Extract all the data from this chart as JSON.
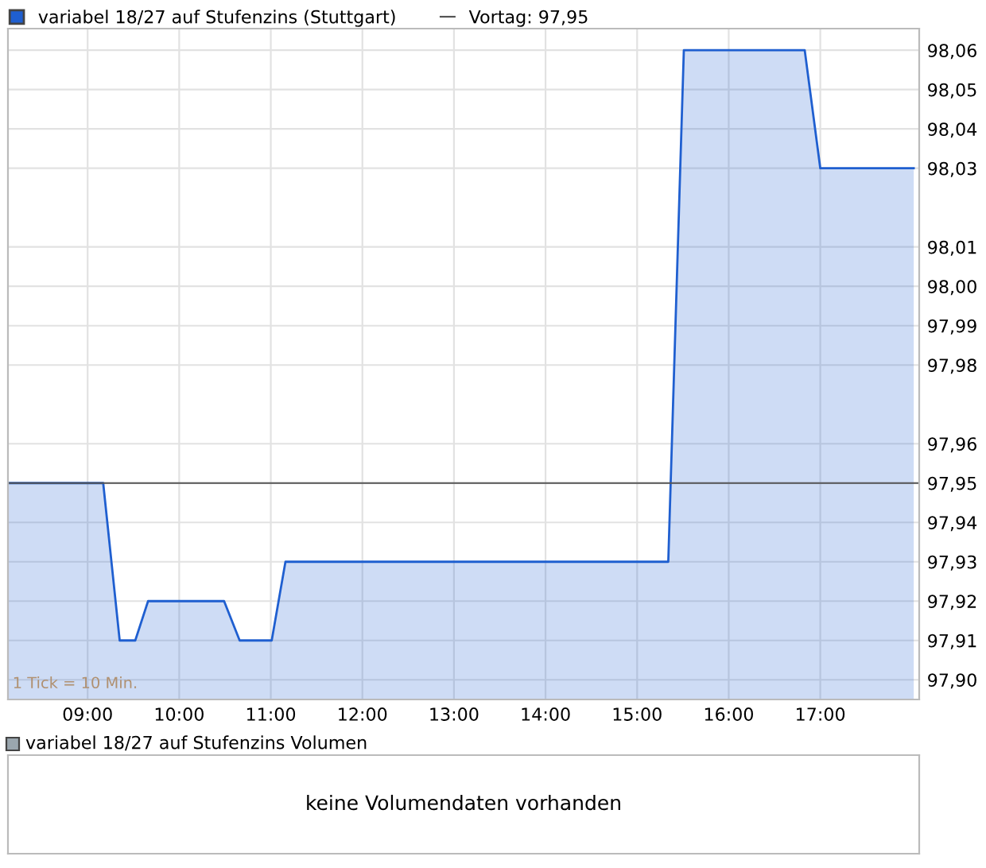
{
  "chart_data": [
    {
      "type": "area",
      "legend": "top left",
      "series": [
        {
          "name": "variabel 18/27 auf Stufenzins (Stuttgart)",
          "color": "#1f5fd0",
          "x": [
            8.13,
            9.17,
            9.35,
            9.52,
            9.66,
            10.49,
            10.66,
            11.01,
            11.16,
            15.34,
            15.51,
            16.83,
            17.0,
            18.02
          ],
          "values": [
            97.95,
            97.95,
            97.91,
            97.91,
            97.92,
            97.92,
            97.91,
            97.91,
            97.93,
            97.93,
            98.06,
            98.06,
            98.03,
            98.03
          ]
        }
      ],
      "ref_lines": [
        {
          "axis": "y",
          "value": 97.95,
          "label": "Vortag: 97,95",
          "color": "#555555"
        }
      ],
      "xlim": [
        8.13,
        18.08
      ],
      "xticks": [
        {
          "value": 9,
          "label": "09:00"
        },
        {
          "value": 10,
          "label": "10:00"
        },
        {
          "value": 11,
          "label": "11:00"
        },
        {
          "value": 12,
          "label": "12:00"
        },
        {
          "value": 13,
          "label": "13:00"
        },
        {
          "value": 14,
          "label": "14:00"
        },
        {
          "value": 15,
          "label": "15:00"
        },
        {
          "value": 16,
          "label": "16:00"
        },
        {
          "value": 17,
          "label": "17:00"
        }
      ],
      "ylim": [
        97.895,
        98.0655
      ],
      "yticks": [
        {
          "value": 97.9,
          "label": "97,90"
        },
        {
          "value": 97.91,
          "label": "97,91"
        },
        {
          "value": 97.92,
          "label": "97,92"
        },
        {
          "value": 97.93,
          "label": "97,93"
        },
        {
          "value": 97.94,
          "label": "97,94"
        },
        {
          "value": 97.95,
          "label": "97,95"
        },
        {
          "value": 97.96,
          "label": "97,96"
        },
        {
          "value": 97.98,
          "label": "97,98"
        },
        {
          "value": 97.99,
          "label": "97,99"
        },
        {
          "value": 98.0,
          "label": "98,00"
        },
        {
          "value": 98.01,
          "label": "98,01"
        },
        {
          "value": 98.03,
          "label": "98,03"
        },
        {
          "value": 98.04,
          "label": "98,04"
        },
        {
          "value": 98.05,
          "label": "98,05"
        },
        {
          "value": 98.06,
          "label": "98,06"
        }
      ],
      "grid": true,
      "annotations": [
        "1 Tick = 10 Min."
      ]
    },
    {
      "type": "other",
      "title": "variabel 18/27 auf Stufenzins Volumen",
      "annotations": [
        "keine Volumendaten vorhanden"
      ]
    }
  ]
}
